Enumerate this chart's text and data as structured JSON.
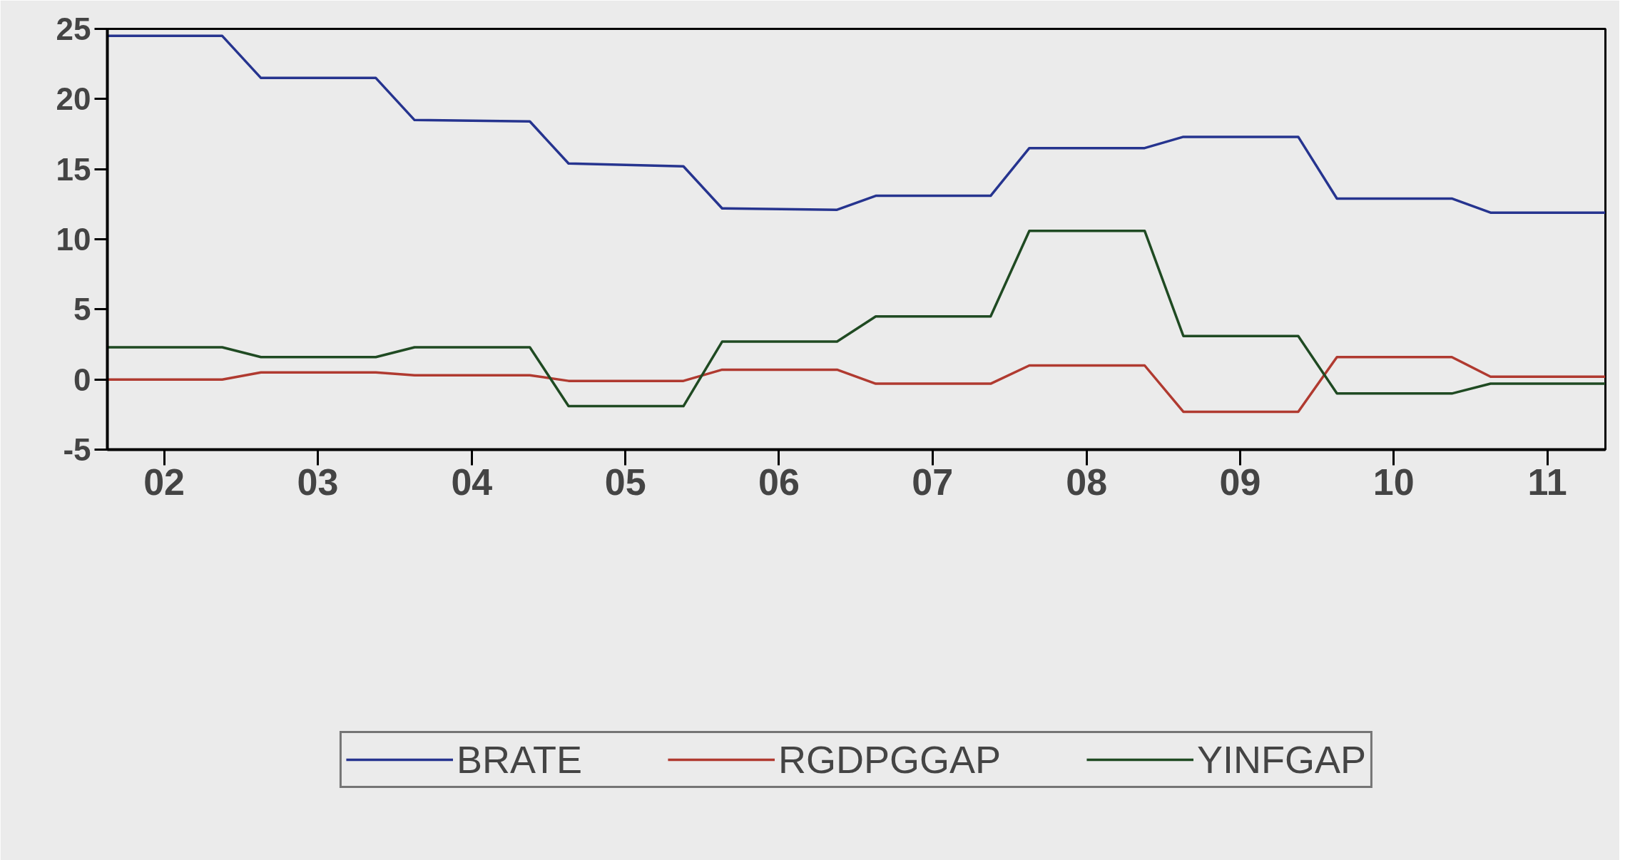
{
  "chart_data": {
    "type": "line",
    "x": [
      "2002-01",
      "2002-10",
      "2003-01",
      "2003-10",
      "2004-01",
      "2004-10",
      "2005-01",
      "2005-10",
      "2006-01",
      "2006-10",
      "2007-01",
      "2007-10",
      "2008-01",
      "2008-10",
      "2009-01",
      "2009-10",
      "2010-01",
      "2010-10",
      "2011-01",
      "2011-10"
    ],
    "series": [
      {
        "name": "BRATE",
        "color": "#26348f",
        "values": [
          24.5,
          24.5,
          21.5,
          21.5,
          18.5,
          18.4,
          15.4,
          15.2,
          12.2,
          12.1,
          13.1,
          13.1,
          16.5,
          16.5,
          17.3,
          17.3,
          12.9,
          12.9,
          11.9,
          11.9
        ]
      },
      {
        "name": "RGDPGGAP",
        "color": "#b03a30",
        "values": [
          0.0,
          0.0,
          0.5,
          0.5,
          0.3,
          0.3,
          -0.1,
          -0.1,
          0.7,
          0.7,
          -0.3,
          -0.3,
          1.0,
          1.0,
          -2.3,
          -2.3,
          1.6,
          1.6,
          0.2,
          0.2
        ]
      },
      {
        "name": "YINFGAP",
        "color": "#1f4a22",
        "values": [
          2.3,
          2.3,
          1.6,
          1.6,
          2.3,
          2.3,
          -1.9,
          -1.9,
          2.7,
          2.7,
          4.5,
          4.5,
          10.6,
          10.6,
          3.1,
          3.1,
          -1.0,
          -1.0,
          -0.3,
          -0.3
        ]
      }
    ],
    "xlim": [
      "2002-01",
      "2011-10"
    ],
    "xticks": [
      {
        "value": "2002-05-16",
        "label": "02"
      },
      {
        "value": "2003-05-16",
        "label": "03"
      },
      {
        "value": "2004-05-16",
        "label": "04"
      },
      {
        "value": "2005-05-16",
        "label": "05"
      },
      {
        "value": "2006-05-16",
        "label": "06"
      },
      {
        "value": "2007-05-16",
        "label": "07"
      },
      {
        "value": "2008-05-16",
        "label": "08"
      },
      {
        "value": "2009-05-16",
        "label": "09"
      },
      {
        "value": "2010-05-16",
        "label": "10"
      },
      {
        "value": "2011-05-16",
        "label": "11"
      }
    ],
    "ylim": [
      -5,
      25
    ],
    "yticks": [
      -5,
      0,
      5,
      10,
      15,
      20,
      25
    ],
    "grid": false,
    "legend": "bottom",
    "line_style": "solid"
  }
}
